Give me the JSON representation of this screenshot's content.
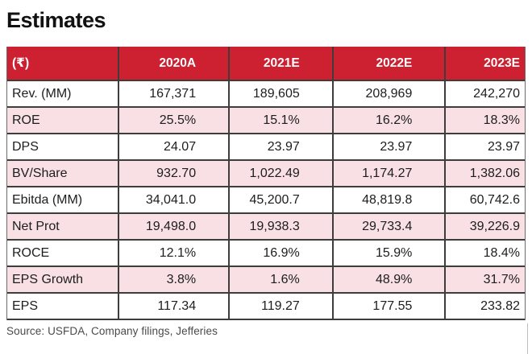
{
  "colors": {
    "header_red": "#cd2030",
    "row_pink": "#f8e0e4",
    "grid_line": "#3d3d3d"
  },
  "chart_data": {
    "type": "table",
    "title": "Estimates",
    "unit_label": "(₹)",
    "columns": [
      "2020A",
      "2021E",
      "2022E",
      "2023E"
    ],
    "rows": [
      {
        "label": "Rev. (MM)",
        "values": [
          "167,371",
          "189,605",
          "208,969",
          "242,270"
        ]
      },
      {
        "label": "ROE",
        "values": [
          "25.5%",
          "15.1%",
          "16.2%",
          "18.3%"
        ]
      },
      {
        "label": "DPS",
        "values": [
          "24.07",
          "23.97",
          "23.97",
          "23.97"
        ]
      },
      {
        "label": "BV/Share",
        "values": [
          "932.70",
          "1,022.49",
          "1,174.27",
          "1,382.06"
        ]
      },
      {
        "label": "Ebitda (MM)",
        "values": [
          "34,041.0",
          "45,200.7",
          "48,819.8",
          "60,742.6"
        ]
      },
      {
        "label": "Net Prot",
        "values": [
          "19,498.0",
          "19,938.3",
          "29,733.4",
          "39,226.9"
        ]
      },
      {
        "label": "ROCE",
        "values": [
          "12.1%",
          "16.9%",
          "15.9%",
          "18.4%"
        ]
      },
      {
        "label": "EPS Growth",
        "values": [
          "3.8%",
          "1.6%",
          "48.9%",
          "31.7%"
        ]
      },
      {
        "label": "EPS",
        "values": [
          "117.34",
          "119.27",
          "177.55",
          "233.82"
        ]
      }
    ],
    "source": "Source: USFDA, Company filings, Jefferies"
  }
}
